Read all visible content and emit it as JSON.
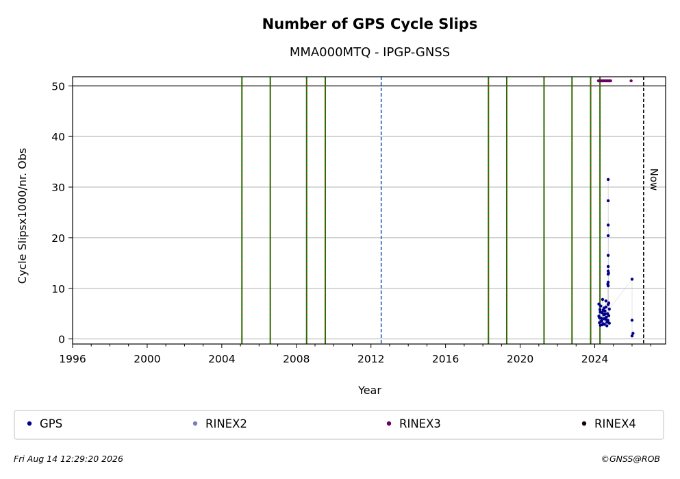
{
  "chart_data": {
    "type": "scatter",
    "title": "Number of GPS Cycle Slips",
    "subtitle": "MMA000MTQ - IPGP-GNSS",
    "xlabel": "Year",
    "ylabel": "Cycle Slipsx1000/nr. Obs",
    "xlim": [
      1996,
      2027.8
    ],
    "ylim": [
      -1,
      51.8
    ],
    "xticks": [
      1996,
      2000,
      2004,
      2008,
      2012,
      2016,
      2020,
      2024
    ],
    "yticks": [
      0,
      10,
      20,
      30,
      40,
      50
    ],
    "grid": "horizontal",
    "cap_line": 50,
    "now": {
      "x": 2026.62,
      "label": "Now"
    },
    "event_lines_equipment": [
      2005.08,
      2006.6,
      2008.55,
      2009.55,
      2018.3,
      2019.28,
      2021.28,
      2022.78,
      2023.78,
      2024.28
    ],
    "event_lines_other": [
      2012.55
    ],
    "series": [
      {
        "name": "GPS",
        "color": "#00008b",
        "x": [
          2024.22,
          2024.25,
          2024.28,
          2024.3,
          2024.32,
          2024.35,
          2024.38,
          2024.4,
          2024.42,
          2024.45,
          2024.48,
          2024.5,
          2024.52,
          2024.55,
          2024.58,
          2024.6,
          2024.62,
          2024.65,
          2024.68,
          2024.7,
          2024.72,
          2024.75,
          2024.78,
          2024.22,
          2024.3,
          2024.4,
          2024.5,
          2024.6,
          2024.7,
          2024.78,
          2024.25,
          2024.35,
          2024.45,
          2024.55,
          2024.65,
          2024.75,
          2024.72,
          2024.72,
          2024.72,
          2024.72,
          2024.72,
          2024.72,
          2024.72,
          2024.72,
          2024.72,
          2024.72,
          2024.7,
          2024.74,
          2026.0,
          2026.0,
          2026.0,
          2026.05
        ],
        "y": [
          4.5,
          3.2,
          5.8,
          2.7,
          6.5,
          4.1,
          3.6,
          5.2,
          7.8,
          3.0,
          4.8,
          6.1,
          2.9,
          5.5,
          3.9,
          7.5,
          4.3,
          2.6,
          5.0,
          3.4,
          6.8,
          4.6,
          3.1,
          6.9,
          5.3,
          2.8,
          4.0,
          6.3,
          3.7,
          5.9,
          4.2,
          3.5,
          5.7,
          4.9,
          3.3,
          7.1,
          10.5,
          11.2,
          12.8,
          13.4,
          14.3,
          16.5,
          20.4,
          22.5,
          27.3,
          31.5,
          10.8,
          13.0,
          11.8,
          3.7,
          0.6,
          1.1
        ]
      },
      {
        "name": "RINEX2",
        "color": "#7b7bbf",
        "x": [],
        "y": []
      },
      {
        "name": "RINEX3",
        "color": "#6a0060",
        "x": [
          2024.2,
          2024.25,
          2024.3,
          2024.35,
          2024.4,
          2024.45,
          2024.5,
          2024.55,
          2024.6,
          2024.65,
          2024.7,
          2024.75,
          2024.8,
          2024.85,
          2025.95
        ],
        "y": [
          51,
          51,
          51,
          51,
          51,
          51,
          51,
          51,
          51,
          51,
          51,
          51,
          51,
          51,
          51
        ]
      },
      {
        "name": "RINEX4",
        "color": "#1a0010",
        "x": [],
        "y": []
      }
    ]
  },
  "footer": {
    "timestamp": "Fri Aug 14 12:29:20 2026",
    "credit": "©GNSS@ROB"
  }
}
